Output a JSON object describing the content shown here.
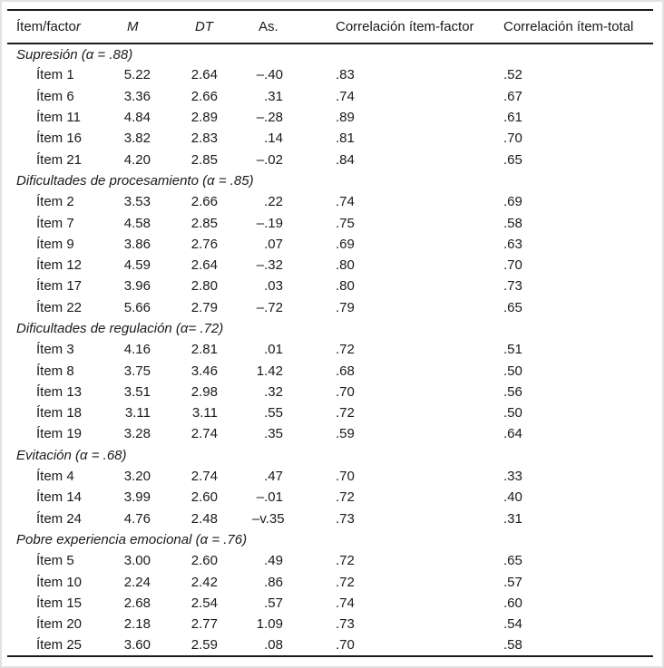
{
  "header": {
    "item_factor_main": "Ítem/facto",
    "item_factor_italic": "r",
    "m": "M",
    "dt": "DT",
    "as": "As.",
    "corr_item_factor": "Correlación ítem-factor",
    "corr_item_total": "Correlación ítem-total"
  },
  "colors": {
    "text": "#1a1a1a",
    "rule": "#1a1a1a",
    "background": "#ffffff",
    "frame": "#e2e2e2"
  },
  "sections": [
    {
      "label": "Supresión (α = .88)",
      "rows": [
        {
          "item": "Ítem 1",
          "m": "5.22",
          "dt": "2.64",
          "as": "–.40",
          "corr_item_factor": ".83",
          "corr_item_total": ".52"
        },
        {
          "item": "Ítem 6",
          "m": "3.36",
          "dt": "2.66",
          "as": ".31",
          "corr_item_factor": ".74",
          "corr_item_total": ".67"
        },
        {
          "item": "Ítem 11",
          "m": "4.84",
          "dt": "2.89",
          "as": "–.28",
          "corr_item_factor": ".89",
          "corr_item_total": ".61"
        },
        {
          "item": "Ítem 16",
          "m": "3.82",
          "dt": "2.83",
          "as": ".14",
          "corr_item_factor": ".81",
          "corr_item_total": ".70"
        },
        {
          "item": "Ítem 21",
          "m": "4.20",
          "dt": "2.85",
          "as": "–.02",
          "corr_item_factor": ".84",
          "corr_item_total": ".65"
        }
      ]
    },
    {
      "label": "Dificultades de procesamiento (α = .85)",
      "rows": [
        {
          "item": "Ítem 2",
          "m": "3.53",
          "dt": "2.66",
          "as": ".22",
          "corr_item_factor": ".74",
          "corr_item_total": ".69"
        },
        {
          "item": "Ítem 7",
          "m": "4.58",
          "dt": "2.85",
          "as": "–.19",
          "corr_item_factor": ".75",
          "corr_item_total": ".58"
        },
        {
          "item": "Ítem 9",
          "m": "3.86",
          "dt": "2.76",
          "as": ".07",
          "corr_item_factor": ".69",
          "corr_item_total": ".63"
        },
        {
          "item": "Ítem 12",
          "m": "4.59",
          "dt": "2.64",
          "as": "–.32",
          "corr_item_factor": ".80",
          "corr_item_total": ".70"
        },
        {
          "item": "Ítem 17",
          "m": "3.96",
          "dt": "2.80",
          "as": ".03",
          "corr_item_factor": ".80",
          "corr_item_total": ".73"
        },
        {
          "item": "Ítem 22",
          "m": "5.66",
          "dt": "2.79",
          "as": "–.72",
          "corr_item_factor": ".79",
          "corr_item_total": ".65"
        }
      ]
    },
    {
      "label": "Dificultades de regulación (α= .72)",
      "rows": [
        {
          "item": "Ítem 3",
          "m": "4.16",
          "dt": "2.81",
          "as": ".01",
          "corr_item_factor": ".72",
          "corr_item_total": ".51"
        },
        {
          "item": "Ítem 8",
          "m": "3.75",
          "dt": "3.46",
          "as": "1.42",
          "corr_item_factor": ".68",
          "corr_item_total": ".50"
        },
        {
          "item": "Ítem 13",
          "m": "3.51",
          "dt": "2.98",
          "as": ".32",
          "corr_item_factor": ".70",
          "corr_item_total": ".56"
        },
        {
          "item": "Ítem 18",
          "m": "3.11",
          "dt": "3.11",
          "as": ".55",
          "corr_item_factor": ".72",
          "corr_item_total": ".50"
        },
        {
          "item": "Ítem 19",
          "m": "3.28",
          "dt": "2.74",
          "as": ".35",
          "corr_item_factor": ".59",
          "corr_item_total": ".64"
        }
      ]
    },
    {
      "label": "Evitación (α = .68)",
      "rows": [
        {
          "item": "Ítem 4",
          "m": "3.20",
          "dt": "2.74",
          "as": ".47",
          "corr_item_factor": ".70",
          "corr_item_total": ".33"
        },
        {
          "item": "Ítem 14",
          "m": "3.99",
          "dt": "2.60",
          "as": "–.01",
          "corr_item_factor": ".72",
          "corr_item_total": ".40"
        },
        {
          "item": "Ítem 24",
          "m": "4.76",
          "dt": "2.48",
          "as": "–v.35",
          "corr_item_factor": ".73",
          "corr_item_total": ".31"
        }
      ]
    },
    {
      "label": "Pobre experiencia emocional (α = .76)",
      "rows": [
        {
          "item": "Ítem 5",
          "m": "3.00",
          "dt": "2.60",
          "as": ".49",
          "corr_item_factor": ".72",
          "corr_item_total": ".65"
        },
        {
          "item": "Ítem 10",
          "m": "2.24",
          "dt": "2.42",
          "as": ".86",
          "corr_item_factor": ".72",
          "corr_item_total": ".57"
        },
        {
          "item": "Ítem 15",
          "m": "2.68",
          "dt": "2.54",
          "as": ".57",
          "corr_item_factor": ".74",
          "corr_item_total": ".60"
        },
        {
          "item": "Ítem 20",
          "m": "2.18",
          "dt": "2.77",
          "as": "1.09",
          "corr_item_factor": ".73",
          "corr_item_total": ".54"
        },
        {
          "item": "Ítem 25",
          "m": "3.60",
          "dt": "2.59",
          "as": ".08",
          "corr_item_factor": ".70",
          "corr_item_total": ".58"
        }
      ]
    }
  ]
}
